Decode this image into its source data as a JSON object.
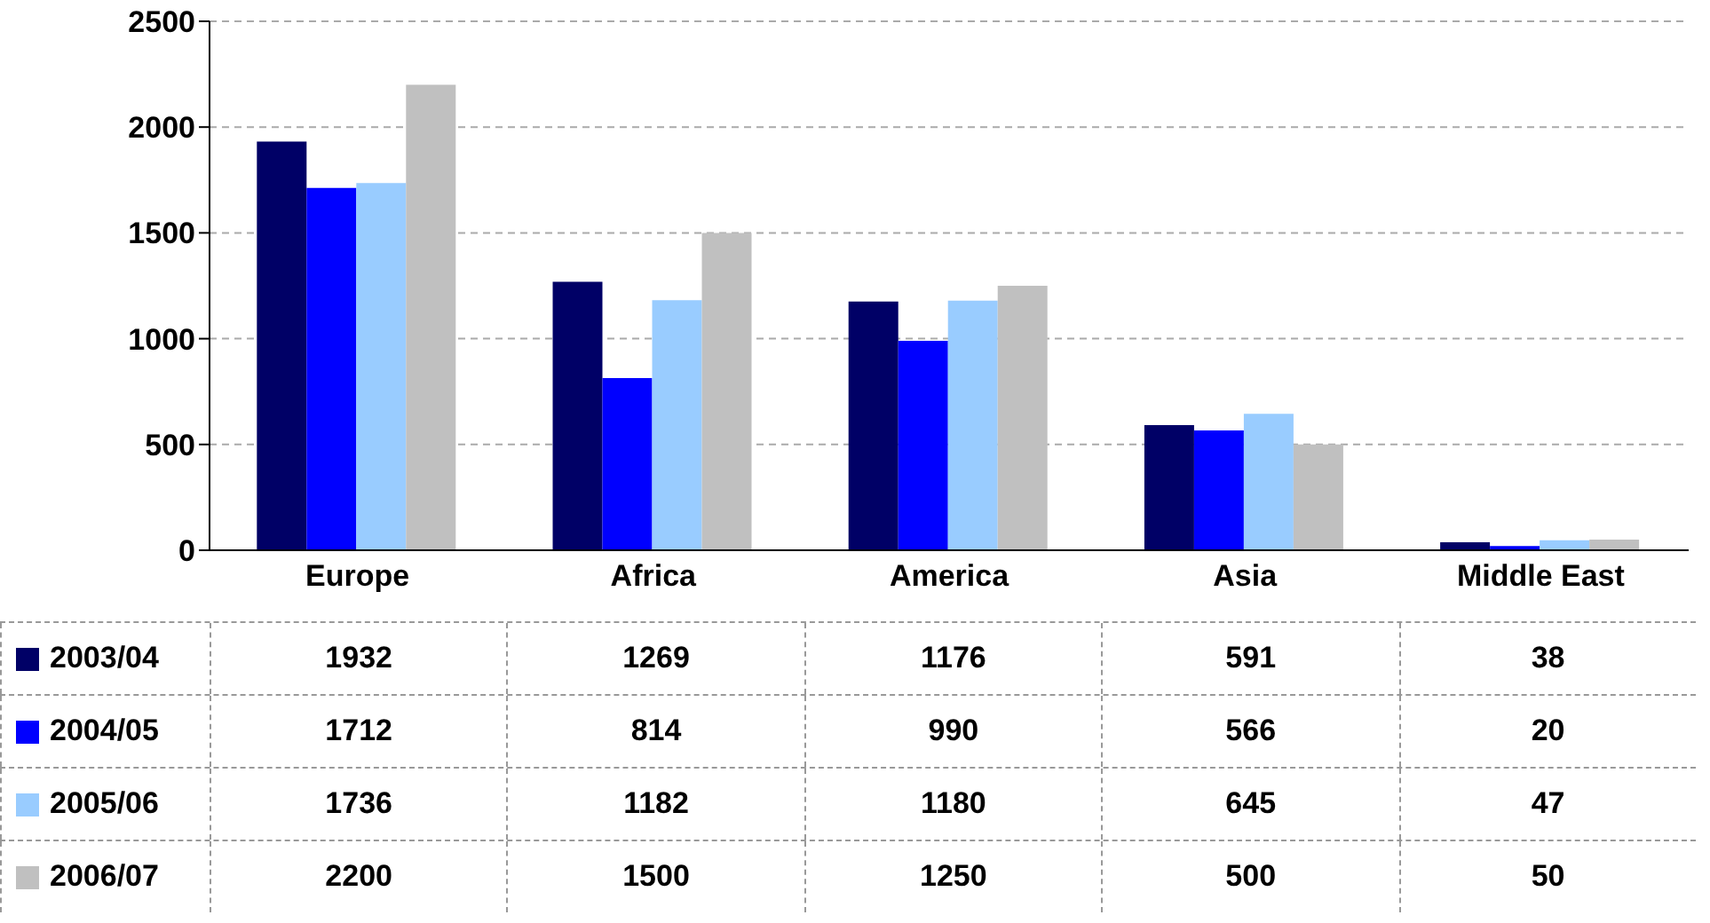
{
  "chart_data": {
    "type": "bar",
    "categories": [
      "Europe",
      "Africa",
      "America",
      "Asia",
      "Middle East"
    ],
    "series": [
      {
        "name": "2003/04",
        "color": "#000066",
        "values": [
          1932,
          1269,
          1176,
          591,
          38
        ]
      },
      {
        "name": "2004/05",
        "color": "#0000ff",
        "values": [
          1712,
          814,
          990,
          566,
          20
        ]
      },
      {
        "name": "2005/06",
        "color": "#99ccff",
        "values": [
          1736,
          1182,
          1180,
          645,
          47
        ]
      },
      {
        "name": "2006/07",
        "color": "#c0c0c0",
        "values": [
          2200,
          1500,
          1250,
          500,
          50
        ]
      }
    ],
    "ylim": [
      0,
      2500
    ],
    "yticks": [
      0,
      500,
      1000,
      1500,
      2000,
      2500
    ],
    "grid": "y",
    "legend": "bottom",
    "data_labels": true
  }
}
